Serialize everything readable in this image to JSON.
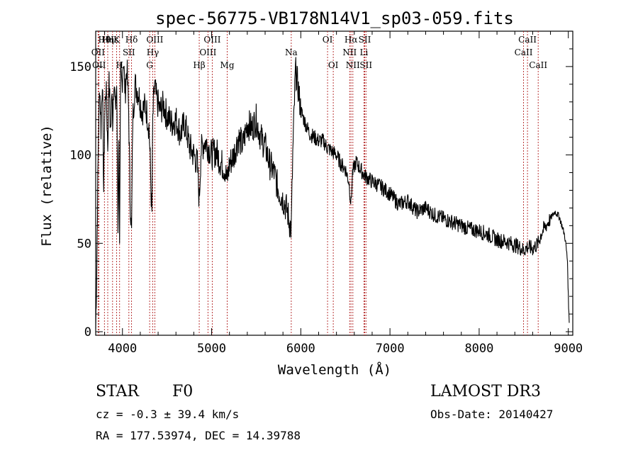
{
  "chart_data": {
    "type": "line",
    "title": "spec-56775-VB178N14V1_sp03-059.fits",
    "xlabel": "Wavelength (Å)",
    "ylabel": "Flux (relative)",
    "xlim": [
      3700,
      9050
    ],
    "ylim": [
      -2,
      170
    ],
    "xticks": [
      4000,
      5000,
      6000,
      7000,
      8000,
      9000
    ],
    "xtick_labels": [
      "4000",
      "5000",
      "6000",
      "7000",
      "8000",
      "9000"
    ],
    "yticks": [
      0,
      50,
      100,
      150
    ],
    "ytick_labels": [
      "0",
      "50",
      "100",
      "150"
    ],
    "grid": false,
    "legend": "none",
    "series": [
      {
        "name": "flux",
        "x": [
          3700,
          3710,
          3720,
          3730,
          3745,
          3760,
          3775,
          3790,
          3800,
          3815,
          3835,
          3850,
          3865,
          3880,
          3890,
          3905,
          3920,
          3935,
          3950,
          3960,
          3968,
          3980,
          3995,
          4010,
          4030,
          4050,
          4070,
          4085,
          4102,
          4115,
          4140,
          4180,
          4220,
          4260,
          4300,
          4330,
          4340,
          4360,
          4380,
          4420,
          4460,
          4500,
          4550,
          4600,
          4650,
          4700,
          4750,
          4800,
          4840,
          4861,
          4880,
          4920,
          4960,
          5000,
          5050,
          5100,
          5150,
          5172,
          5200,
          5250,
          5300,
          5350,
          5400,
          5450,
          5500,
          5550,
          5600,
          5650,
          5700,
          5750,
          5800,
          5850,
          5870,
          5893,
          5910,
          5940,
          5970,
          6000,
          6050,
          6100,
          6150,
          6200,
          6250,
          6300,
          6350,
          6400,
          6450,
          6500,
          6540,
          6563,
          6580,
          6620,
          6680,
          6720,
          6800,
          6900,
          7000,
          7100,
          7200,
          7300,
          7400,
          7500,
          7600,
          7700,
          7800,
          7900,
          8000,
          8100,
          8200,
          8300,
          8400,
          8450,
          8500,
          8542,
          8600,
          8662,
          8700,
          8750,
          8800,
          8850,
          8900,
          8940,
          8960,
          8975,
          8990,
          9000,
          9010
        ],
        "values": [
          2,
          30,
          70,
          110,
          140,
          115,
          145,
          80,
          120,
          140,
          105,
          150,
          110,
          135,
          120,
          145,
          125,
          140,
          60,
          115,
          45,
          145,
          140,
          155,
          135,
          150,
          125,
          78,
          55,
          120,
          140,
          135,
          125,
          128,
          115,
          65,
          120,
          140,
          132,
          125,
          128,
          122,
          118,
          120,
          112,
          118,
          105,
          100,
          95,
          74,
          102,
          108,
          105,
          100,
          102,
          96,
          92,
          85,
          95,
          100,
          110,
          105,
          118,
          115,
          120,
          110,
          105,
          95,
          90,
          80,
          75,
          68,
          62,
          58,
          100,
          148,
          138,
          125,
          118,
          112,
          110,
          108,
          108,
          104,
          102,
          100,
          95,
          92,
          85,
          72,
          90,
          96,
          91,
          88,
          85,
          82,
          78,
          72,
          74,
          68,
          70,
          66,
          64,
          62,
          60,
          58,
          57,
          55,
          52,
          51,
          49,
          48,
          46,
          48,
          47,
          50,
          56,
          60,
          64,
          68,
          65,
          58,
          54,
          48,
          40,
          20,
          5
        ]
      }
    ],
    "spectral_lines": [
      {
        "label": "Hθ",
        "x": 3798,
        "row": 0
      },
      {
        "label": "Hη",
        "x": 3835,
        "row": 0
      },
      {
        "label": "Hε",
        "x": 3889,
        "row": 0
      },
      {
        "label": "K",
        "x": 3934,
        "row": 0
      },
      {
        "label": "Hδ",
        "x": 4102,
        "row": 0
      },
      {
        "label": "OIII",
        "x": 4363,
        "row": 0
      },
      {
        "label": "OIII",
        "x": 5007,
        "row": 0
      },
      {
        "label": "OI",
        "x": 6300,
        "row": 0
      },
      {
        "label": "Hα",
        "x": 6563,
        "row": 0
      },
      {
        "label": "SII",
        "x": 6717,
        "row": 0
      },
      {
        "label": "CaII",
        "x": 8542,
        "row": 0
      },
      {
        "label": "OII",
        "x": 3727,
        "row": 1
      },
      {
        "label": "SII",
        "x": 4072,
        "row": 1
      },
      {
        "label": "Hγ",
        "x": 4340,
        "row": 1
      },
      {
        "label": "OIII",
        "x": 4959,
        "row": 1
      },
      {
        "label": "Na",
        "x": 5893,
        "row": 1
      },
      {
        "label": "NII",
        "x": 6548,
        "row": 1
      },
      {
        "label": "Li",
        "x": 6708,
        "row": 1
      },
      {
        "label": "CaII",
        "x": 8498,
        "row": 1
      },
      {
        "label": "OII",
        "x": 3737,
        "row": 2
      },
      {
        "label": "H",
        "x": 3968,
        "row": 2
      },
      {
        "label": "G",
        "x": 4305,
        "row": 2
      },
      {
        "label": "Hβ",
        "x": 4861,
        "row": 2
      },
      {
        "label": "Mg",
        "x": 5175,
        "row": 2
      },
      {
        "label": "OI",
        "x": 6364,
        "row": 2
      },
      {
        "label": "NII",
        "x": 6584,
        "row": 2
      },
      {
        "label": "SII",
        "x": 6731,
        "row": 2
      },
      {
        "label": "CaII",
        "x": 8662,
        "row": 2
      }
    ]
  },
  "info": {
    "object_class": "STAR",
    "subclass": "F0",
    "redshift": "cz = -0.3 ± 39.4 km/s",
    "coords": "RA = 177.53974, DEC =  14.39788",
    "survey": "LAMOST DR3",
    "obs_date": "Obs-Date: 20140427"
  }
}
